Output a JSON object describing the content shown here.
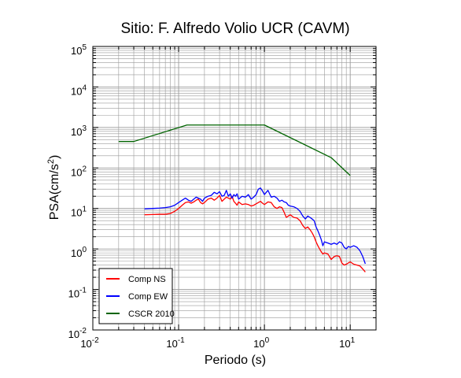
{
  "chart_data": {
    "type": "line",
    "title": "Sitio: F. Alfredo Volio UCR (CAVM)",
    "xlabel": "Periodo (s)",
    "ylabel": "PSA(cm/s",
    "ylabel_sup": "2",
    "ylabel_tail": ")",
    "xscale": "log",
    "yscale": "log",
    "xlim": [
      0.01,
      20
    ],
    "ylim": [
      0.01,
      100000
    ],
    "grid": true,
    "legend_position": "bottom-left",
    "x_ticks": [
      {
        "value": 0.01,
        "base": "10",
        "exp": "-2"
      },
      {
        "value": 0.1,
        "base": "10",
        "exp": "-1"
      },
      {
        "value": 1,
        "base": "10",
        "exp": "0"
      },
      {
        "value": 10,
        "base": "10",
        "exp": "1"
      }
    ],
    "y_ticks": [
      {
        "value": 0.01,
        "base": "10",
        "exp": "-2"
      },
      {
        "value": 0.1,
        "base": "10",
        "exp": "-1"
      },
      {
        "value": 1,
        "base": "10",
        "exp": "0"
      },
      {
        "value": 10,
        "base": "10",
        "exp": "1"
      },
      {
        "value": 100,
        "base": "10",
        "exp": "2"
      },
      {
        "value": 1000,
        "base": "10",
        "exp": "3"
      },
      {
        "value": 10000,
        "base": "10",
        "exp": "4"
      },
      {
        "value": 100000,
        "base": "10",
        "exp": "5"
      }
    ],
    "series": [
      {
        "name": "Comp NS",
        "color": "#ff0000",
        "x": [
          0.04,
          0.05,
          0.06,
          0.07,
          0.08,
          0.09,
          0.1,
          0.11,
          0.12,
          0.13,
          0.14,
          0.15,
          0.16,
          0.17,
          0.18,
          0.19,
          0.2,
          0.22,
          0.24,
          0.26,
          0.28,
          0.3,
          0.32,
          0.34,
          0.36,
          0.38,
          0.4,
          0.42,
          0.44,
          0.46,
          0.48,
          0.5,
          0.55,
          0.6,
          0.65,
          0.7,
          0.75,
          0.8,
          0.85,
          0.9,
          0.95,
          1.0,
          1.1,
          1.2,
          1.3,
          1.4,
          1.5,
          1.6,
          1.7,
          1.8,
          1.9,
          2.0,
          2.2,
          2.4,
          2.6,
          2.8,
          3.0,
          3.2,
          3.4,
          3.6,
          3.8,
          4.0,
          4.2,
          4.4,
          4.6,
          4.8,
          5.0,
          5.5,
          6.0,
          6.5,
          7.0,
          7.5,
          8.0,
          8.5,
          9.0,
          9.5,
          10,
          11,
          12,
          13,
          14,
          15
        ],
        "values": [
          7.0,
          7.1,
          7.2,
          7.2,
          7.5,
          8.5,
          10,
          12,
          14,
          14.5,
          13.5,
          14.5,
          16,
          17,
          14,
          13,
          14,
          17,
          18,
          16,
          18,
          21,
          15,
          17,
          19,
          18,
          17,
          20,
          15,
          13.5,
          12,
          14.5,
          12.5,
          13,
          12.5,
          11.5,
          12,
          13,
          14,
          15,
          13.5,
          12.5,
          14.5,
          14,
          11,
          10,
          11,
          10.5,
          8,
          6,
          6.5,
          7,
          6,
          5.8,
          5,
          3.8,
          3.2,
          3.5,
          3.0,
          2.5,
          2.0,
          1.5,
          1.2,
          1.0,
          0.85,
          0.75,
          0.8,
          0.75,
          0.55,
          0.65,
          0.68,
          0.65,
          0.45,
          0.4,
          0.42,
          0.45,
          0.48,
          0.42,
          0.4,
          0.38,
          0.32,
          0.27
        ]
      },
      {
        "name": "Comp EW",
        "color": "#0000ff",
        "x": [
          0.04,
          0.05,
          0.06,
          0.07,
          0.08,
          0.09,
          0.1,
          0.11,
          0.12,
          0.13,
          0.14,
          0.15,
          0.16,
          0.17,
          0.18,
          0.19,
          0.2,
          0.22,
          0.24,
          0.26,
          0.28,
          0.3,
          0.32,
          0.34,
          0.36,
          0.38,
          0.4,
          0.42,
          0.44,
          0.46,
          0.48,
          0.5,
          0.55,
          0.6,
          0.65,
          0.7,
          0.75,
          0.8,
          0.85,
          0.9,
          0.95,
          1.0,
          1.1,
          1.2,
          1.3,
          1.4,
          1.5,
          1.6,
          1.7,
          1.8,
          1.9,
          2.0,
          2.2,
          2.4,
          2.6,
          2.8,
          3.0,
          3.2,
          3.4,
          3.6,
          3.8,
          4.0,
          4.2,
          4.4,
          4.6,
          4.8,
          5.0,
          5.5,
          6.0,
          6.5,
          7.0,
          7.5,
          8.0,
          8.5,
          9.0,
          9.5,
          10,
          11,
          12,
          13,
          14,
          15
        ],
        "values": [
          9.8,
          10,
          10.2,
          10.5,
          11,
          12,
          14,
          16,
          18,
          16,
          15,
          17,
          19,
          18,
          17,
          15,
          18,
          20,
          21,
          25,
          23,
          26,
          20,
          21,
          28,
          20,
          23,
          18,
          22,
          20,
          23,
          17,
          20,
          19,
          22,
          17,
          19,
          22,
          30,
          32,
          27,
          22,
          28,
          19,
          20,
          18,
          15,
          16,
          14.5,
          14,
          12,
          11.5,
          11,
          10,
          8.5,
          6.5,
          5.5,
          6.5,
          6,
          5.5,
          5,
          3.5,
          2.8,
          2.2,
          1.7,
          1.2,
          1.5,
          1.4,
          1.3,
          1.4,
          1.3,
          1.5,
          1.4,
          1.1,
          1.0,
          1.15,
          1.1,
          1.2,
          1.1,
          0.9,
          0.65,
          0.43
        ]
      },
      {
        "name": "CSCR 2010",
        "color": "#006400",
        "x": [
          0.02,
          0.03,
          0.125,
          1.0,
          6.0,
          10
        ],
        "values": [
          450,
          450,
          1150,
          1150,
          180,
          65
        ]
      }
    ]
  }
}
